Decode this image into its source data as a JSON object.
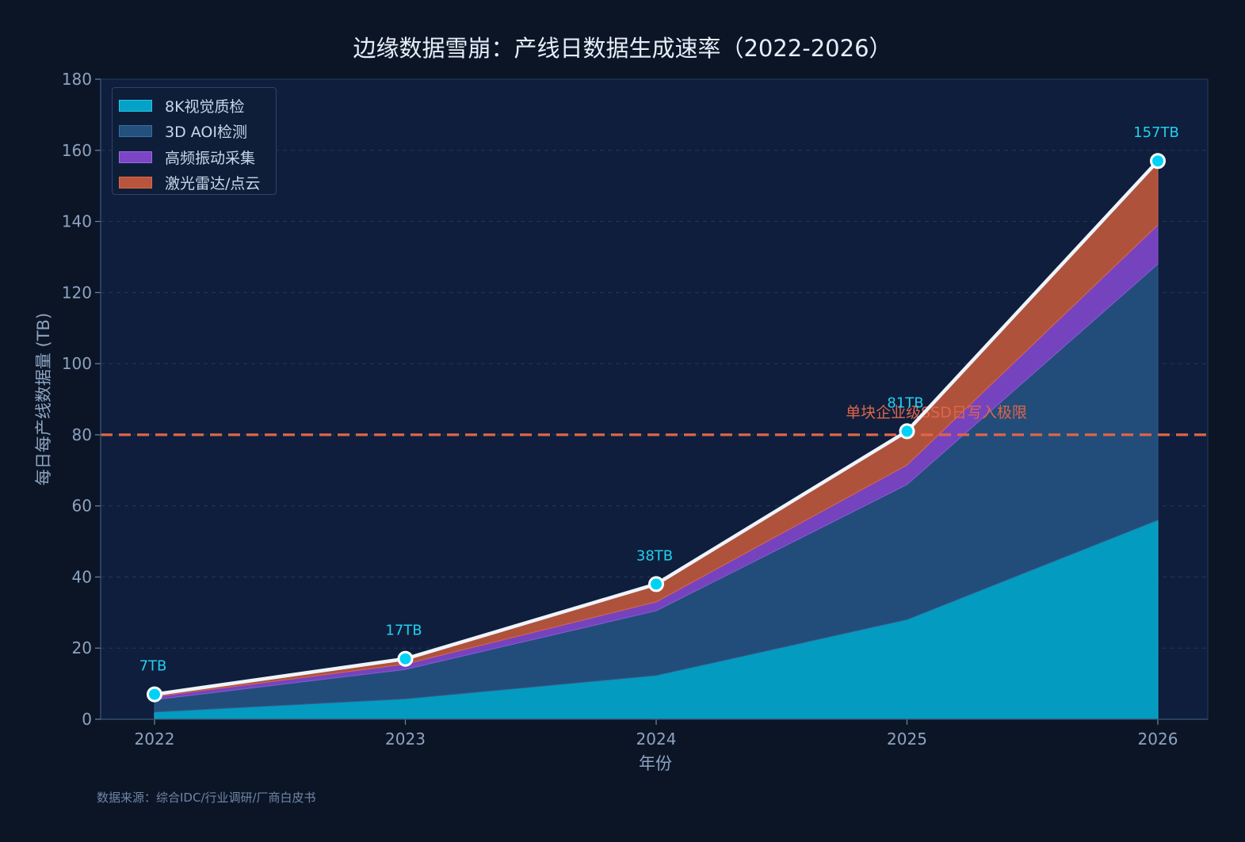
{
  "chart_data": {
    "type": "area",
    "stacked": true,
    "title": "边缘数据雪崩：产线日数据生成速率（2022-2026）",
    "xlabel": "年份",
    "ylabel": "每日每产线数据量 (TB)",
    "x": [
      "2022",
      "2023",
      "2024",
      "2025",
      "2026"
    ],
    "ylim": [
      0,
      180
    ],
    "yticks": [
      0,
      20,
      40,
      60,
      80,
      100,
      120,
      140,
      160,
      180
    ],
    "grid": true,
    "legend_position": "top-left",
    "series": [
      {
        "name": "8K视觉质检",
        "values": [
          2,
          5.7,
          12.3,
          28,
          56
        ],
        "color": "#04a2c8"
      },
      {
        "name": "3D AOI检测",
        "values": [
          3.5,
          8.3,
          18.2,
          38,
          72
        ],
        "color": "#24507e"
      },
      {
        "name": "高频振动采集",
        "values": [
          0.8,
          1.5,
          2.5,
          5.5,
          11
        ],
        "color": "#7b45c6"
      },
      {
        "name": "激光雷达/点云",
        "values": [
          0.7,
          1.5,
          5,
          9.5,
          18
        ],
        "color": "#b8553c"
      }
    ],
    "total": {
      "values": [
        7,
        17,
        38,
        81,
        157
      ],
      "labels": [
        "7TB",
        "17TB",
        "38TB",
        "81TB",
        "157TB"
      ],
      "color": "#eef4fb",
      "marker_color": "#00d2f5"
    },
    "reference_line": {
      "value": 80,
      "label": "单块企业级SSD日写入极限",
      "color": "#e0654a"
    },
    "source_note": "数据来源：综合IDC/行业调研/厂商白皮书"
  }
}
